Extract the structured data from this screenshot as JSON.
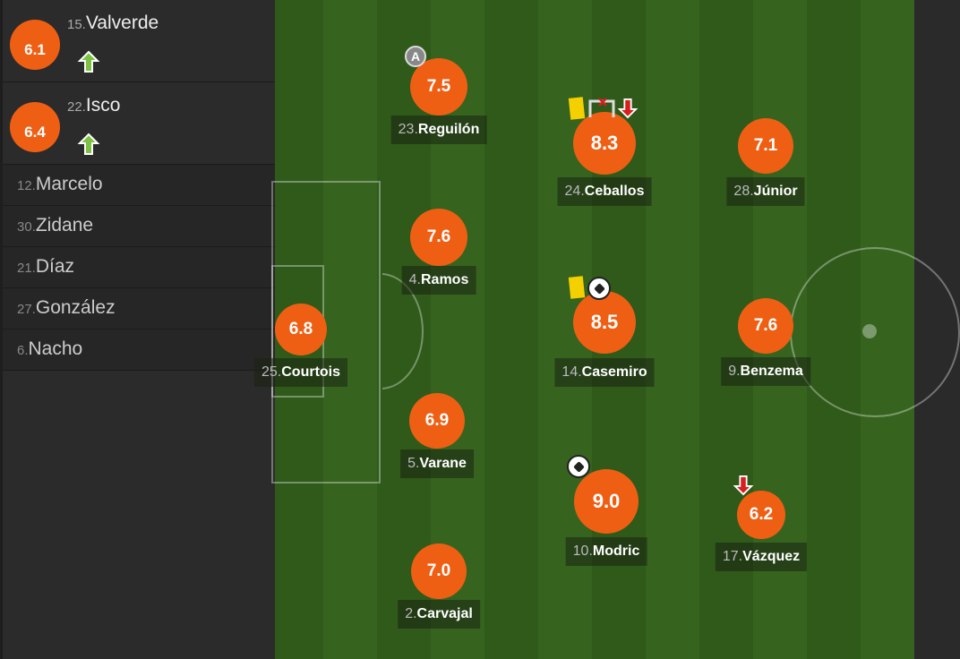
{
  "substitutes": [
    {
      "number": "15.",
      "name": "Valverde",
      "rating": "6.1",
      "icon": "sub-in-arrow-icon"
    },
    {
      "number": "22.",
      "name": "Isco",
      "rating": "6.4",
      "icon": "sub-in-arrow-icon"
    }
  ],
  "bench": [
    {
      "number": "12.",
      "name": "Marcelo"
    },
    {
      "number": "30.",
      "name": "Zidane"
    },
    {
      "number": "21.",
      "name": "Díaz"
    },
    {
      "number": "27.",
      "name": "González"
    },
    {
      "number": "6.",
      "name": "Nacho"
    }
  ],
  "players": [
    {
      "number": "25.",
      "name": "Courtois",
      "rating": "6.8",
      "icons": []
    },
    {
      "number": "23.",
      "name": "Reguilón",
      "rating": "7.5",
      "icons": [
        "assist-icon"
      ]
    },
    {
      "number": "4.",
      "name": "Ramos",
      "rating": "7.6",
      "icons": []
    },
    {
      "number": "5.",
      "name": "Varane",
      "rating": "6.9",
      "icons": []
    },
    {
      "number": "2.",
      "name": "Carvajal",
      "rating": "7.0",
      "icons": []
    },
    {
      "number": "24.",
      "name": "Ceballos",
      "rating": "8.3",
      "icons": [
        "yellow-card-icon",
        "missed-shot-icon",
        "sub-out-arrow-icon"
      ]
    },
    {
      "number": "14.",
      "name": "Casemiro",
      "rating": "8.5",
      "icons": [
        "yellow-card-icon",
        "goal-ball-icon"
      ]
    },
    {
      "number": "10.",
      "name": "Modric",
      "rating": "9.0",
      "icons": [
        "goal-ball-icon"
      ]
    },
    {
      "number": "28.",
      "name": "Júnior",
      "rating": "7.1",
      "icons": []
    },
    {
      "number": "9.",
      "name": "Benzema",
      "rating": "7.6",
      "icons": []
    },
    {
      "number": "17.",
      "name": "Vázquez",
      "rating": "6.2",
      "icons": [
        "sub-out-arrow-icon"
      ]
    }
  ],
  "assist_letter": "A",
  "colors": {
    "rating": "#ee5f14",
    "pitch_dark": "#2f5a1a",
    "pitch_light": "#36641f",
    "yellow_card": "#f5d000",
    "sub_in": "#7dc242",
    "sub_out": "#d81e1e"
  }
}
